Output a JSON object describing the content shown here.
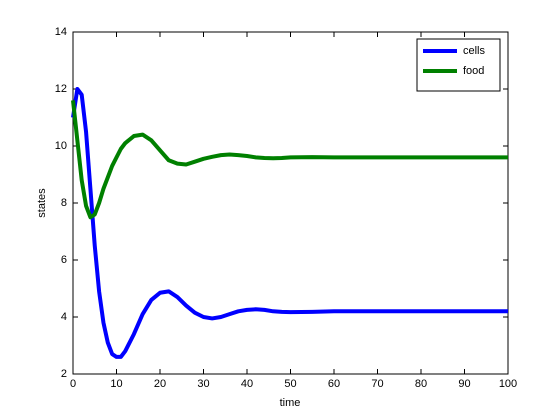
{
  "chart_data": {
    "type": "line",
    "xlabel": "time",
    "ylabel": "states",
    "x": [
      0,
      1,
      2,
      3,
      4,
      5,
      6,
      7,
      8,
      9,
      10,
      11,
      12,
      14,
      16,
      18,
      20,
      22,
      24,
      26,
      28,
      30,
      32,
      34,
      36,
      38,
      40,
      42,
      44,
      46,
      48,
      50,
      55,
      60,
      70,
      80,
      90,
      100
    ],
    "series": [
      {
        "name": "cells",
        "color": "#0000ff",
        "values": [
          11.0,
          12.0,
          11.8,
          10.5,
          8.5,
          6.5,
          4.9,
          3.8,
          3.1,
          2.7,
          2.6,
          2.6,
          2.8,
          3.4,
          4.1,
          4.6,
          4.85,
          4.9,
          4.7,
          4.4,
          4.15,
          4.0,
          3.95,
          4.0,
          4.1,
          4.2,
          4.25,
          4.27,
          4.25,
          4.2,
          4.18,
          4.17,
          4.18,
          4.2,
          4.2,
          4.2,
          4.2,
          4.2
        ]
      },
      {
        "name": "food",
        "color": "#008000",
        "values": [
          11.6,
          10.2,
          8.8,
          7.9,
          7.5,
          7.6,
          8.0,
          8.5,
          8.9,
          9.3,
          9.6,
          9.9,
          10.1,
          10.35,
          10.4,
          10.2,
          9.85,
          9.5,
          9.38,
          9.35,
          9.45,
          9.55,
          9.62,
          9.68,
          9.7,
          9.68,
          9.65,
          9.6,
          9.58,
          9.57,
          9.58,
          9.6,
          9.61,
          9.6,
          9.6,
          9.6,
          9.6,
          9.6
        ]
      }
    ],
    "xlim": [
      0,
      100
    ],
    "xticks": [
      0,
      10,
      20,
      30,
      40,
      50,
      60,
      70,
      80,
      90,
      100
    ],
    "ylim": [
      2,
      14
    ],
    "yticks": [
      2,
      4,
      6,
      8,
      10,
      12,
      14
    ],
    "grid": false,
    "legend": "upper-right"
  }
}
